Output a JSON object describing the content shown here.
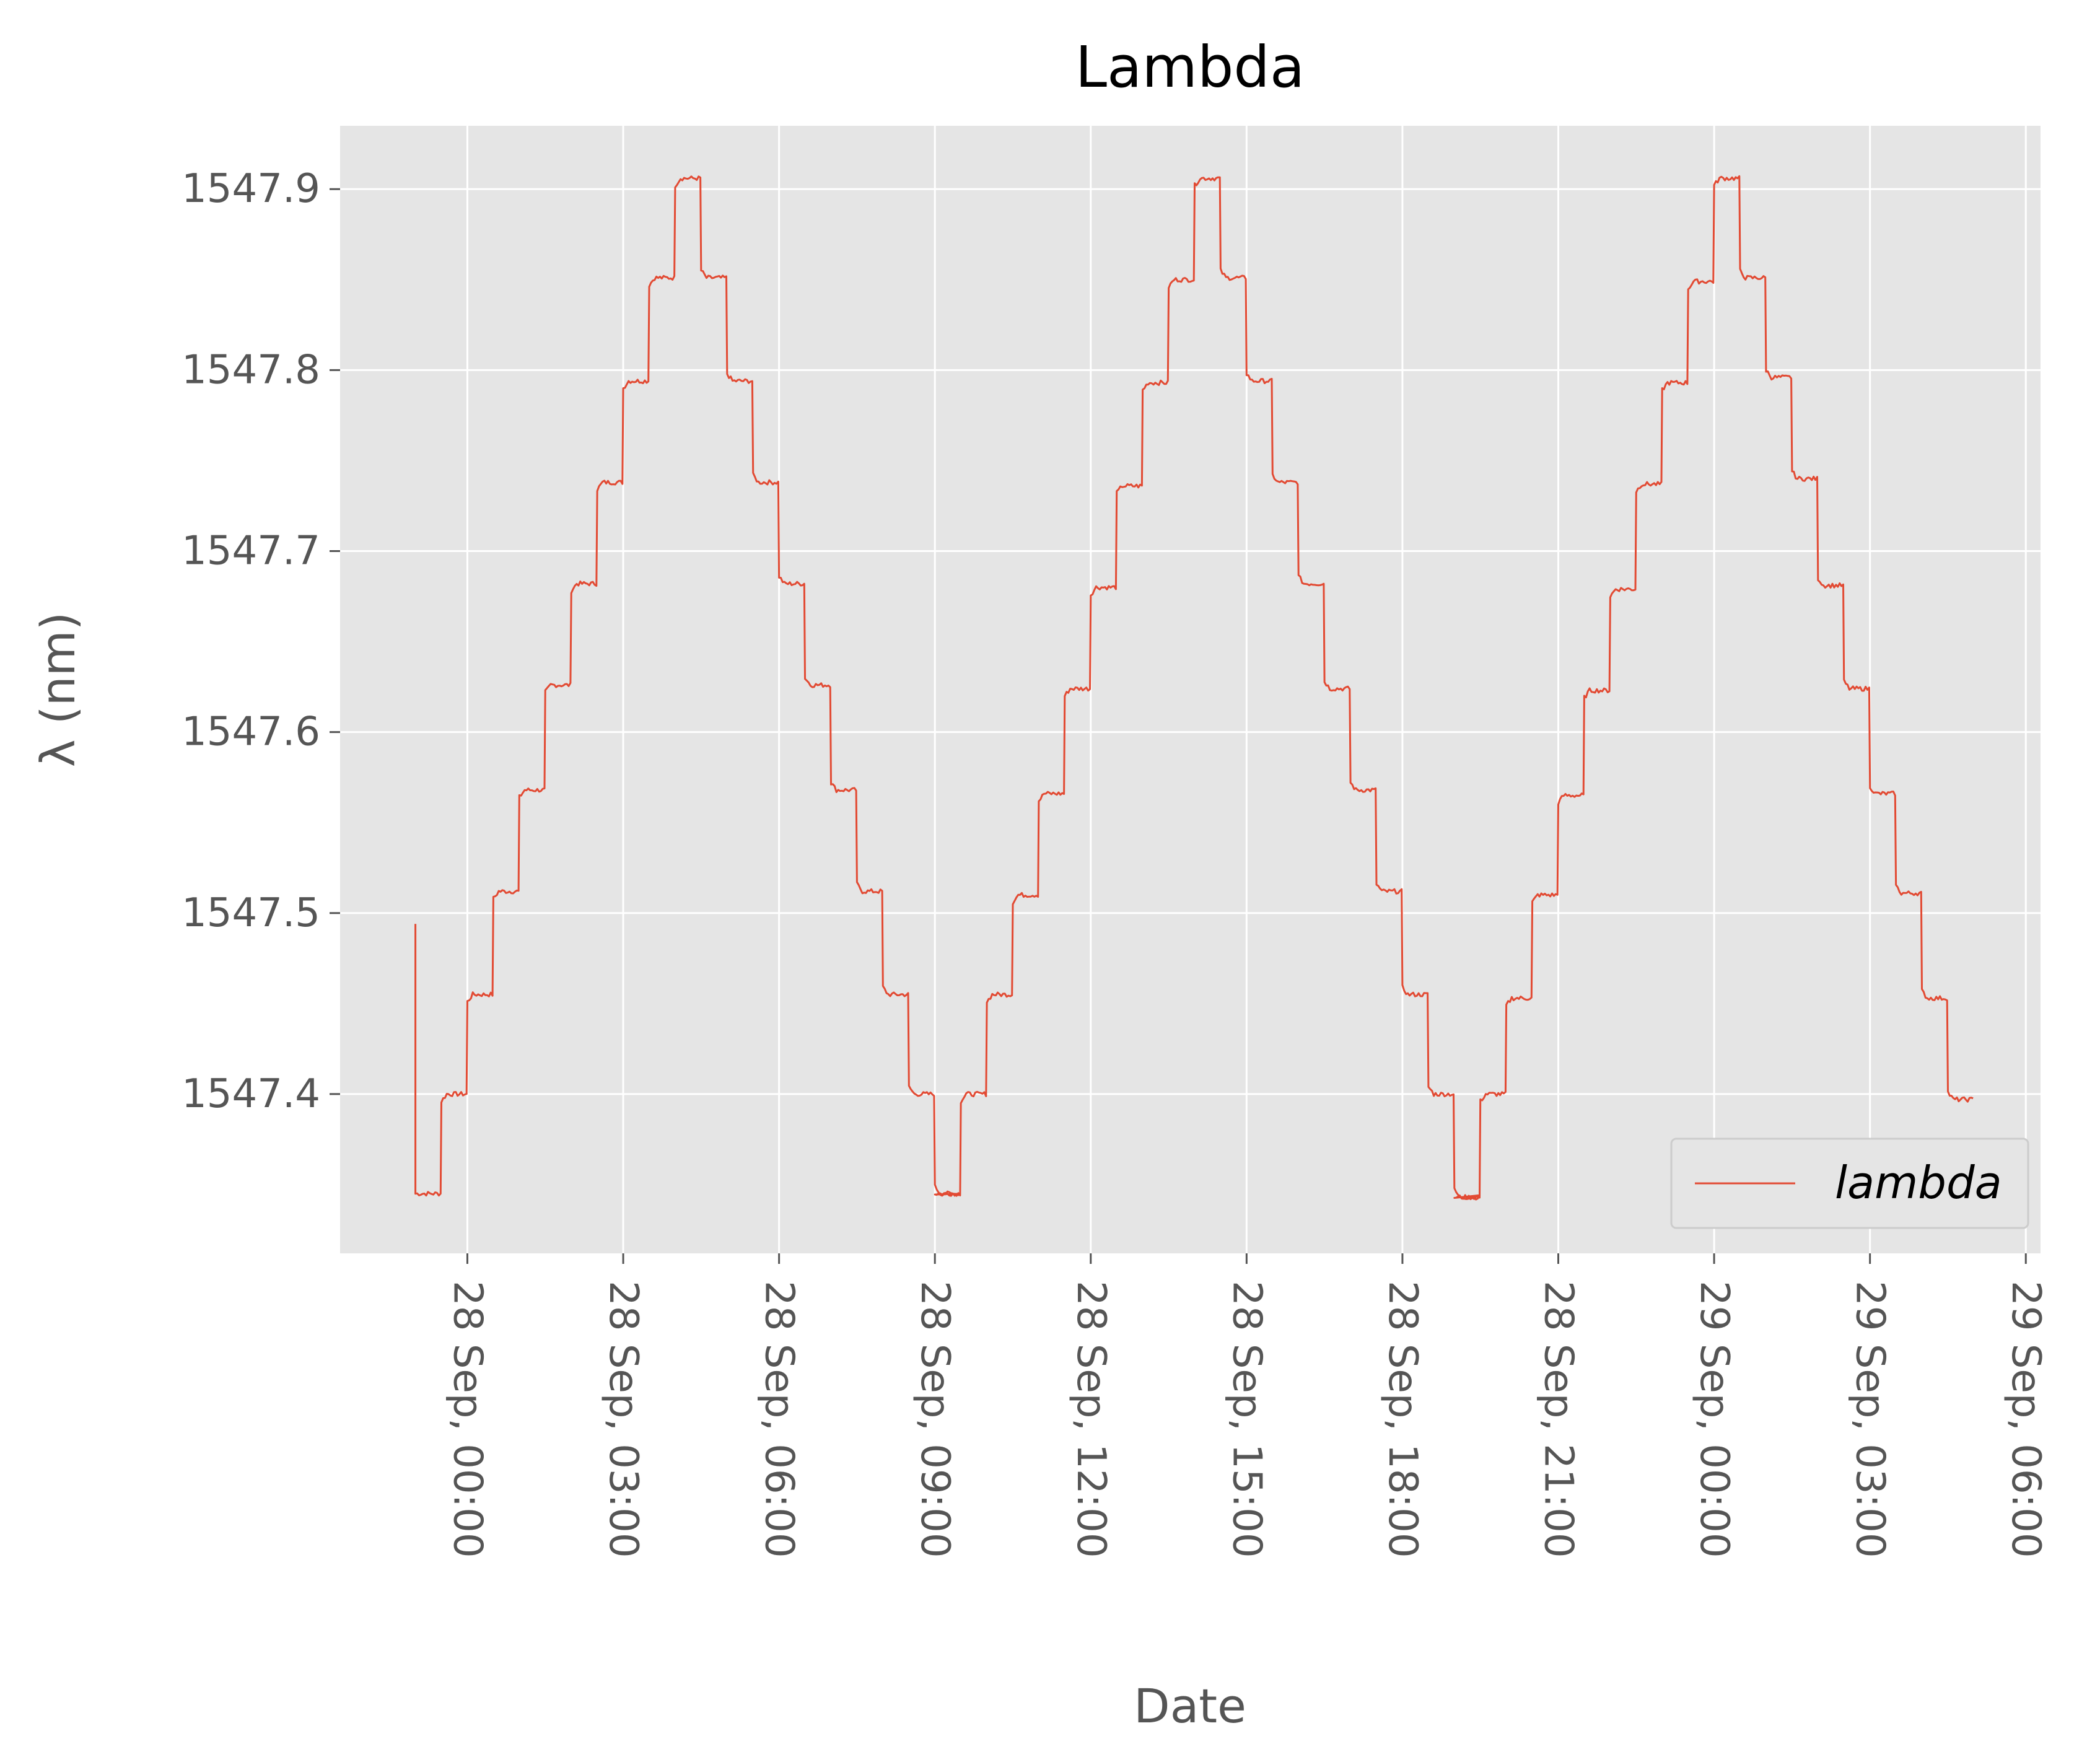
{
  "chart_data": {
    "type": "line",
    "title": "Lambda",
    "xlabel": "Date",
    "ylabel": "λ (nm)",
    "x_ticks": [
      {
        "value": "2018-09-28T00:00",
        "label": "28 Sep, 00:00"
      },
      {
        "value": "2018-09-28T03:00",
        "label": "28 Sep, 03:00"
      },
      {
        "value": "2018-09-28T06:00",
        "label": "28 Sep, 06:00"
      },
      {
        "value": "2018-09-28T09:00",
        "label": "28 Sep, 09:00"
      },
      {
        "value": "2018-09-28T12:00",
        "label": "28 Sep, 12:00"
      },
      {
        "value": "2018-09-28T15:00",
        "label": "28 Sep, 15:00"
      },
      {
        "value": "2018-09-28T18:00",
        "label": "28 Sep, 18:00"
      },
      {
        "value": "2018-09-28T21:00",
        "label": "28 Sep, 21:00"
      },
      {
        "value": "2018-09-29T00:00",
        "label": "29 Sep, 00:00"
      },
      {
        "value": "2018-09-29T03:00",
        "label": "29 Sep, 03:00"
      },
      {
        "value": "2018-09-29T06:00",
        "label": "29 Sep, 06:00"
      }
    ],
    "y_ticks": [
      {
        "value": 1547.4,
        "label": "1547.4"
      },
      {
        "value": 1547.5,
        "label": "1547.5"
      },
      {
        "value": 1547.6,
        "label": "1547.6"
      },
      {
        "value": 1547.7,
        "label": "1547.7"
      },
      {
        "value": 1547.8,
        "label": "1547.8"
      },
      {
        "value": 1547.9,
        "label": "1547.9"
      }
    ],
    "xlim": [
      "2018-09-27T21:33",
      "2018-09-29T06:17"
    ],
    "ylim": [
      1547.312,
      1547.935
    ],
    "grid": true,
    "legend_position": "lower-right",
    "series": [
      {
        "name": "lambda",
        "color": "#e24a33",
        "segments": [
          {
            "start": "2018-09-27T23:00",
            "levels": [
              1547.345,
              1547.4,
              1547.455,
              1547.512,
              1547.568,
              1547.626,
              1547.682,
              1547.738,
              1547.794,
              1547.851,
              1547.906,
              1547.851,
              1547.794,
              1547.738,
              1547.682,
              1547.626,
              1547.568,
              1547.512,
              1547.455,
              1547.4,
              1547.345
            ]
          },
          {
            "start": "2018-09-28T09:00",
            "levels": [
              1547.345,
              1547.4,
              1547.455,
              1547.51,
              1547.566,
              1547.624,
              1547.68,
              1547.736,
              1547.793,
              1547.85,
              1547.906,
              1547.851,
              1547.794,
              1547.738,
              1547.682,
              1547.624,
              1547.568,
              1547.512,
              1547.455,
              1547.4,
              1547.343
            ]
          },
          {
            "start": "2018-09-28T19:00",
            "levels": [
              1547.343,
              1547.4,
              1547.453,
              1547.51,
              1547.565,
              1547.623,
              1547.679,
              1547.737,
              1547.793,
              1547.849,
              1547.906,
              1547.851,
              1547.796,
              1547.74,
              1547.681,
              1547.624,
              1547.566,
              1547.511,
              1547.453,
              1547.397
            ]
          }
        ],
        "initial_value": 1547.494,
        "initial_time": "2018-09-27T23:00"
      }
    ]
  }
}
